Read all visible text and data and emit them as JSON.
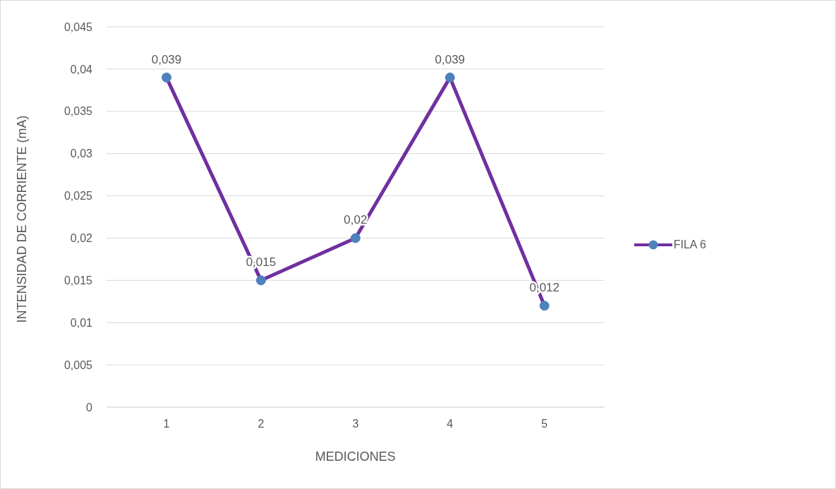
{
  "chart_data": {
    "type": "line",
    "xlabel": "MEDICIONES",
    "ylabel": "INTENSIDAD DE CORRIENTE (mA)",
    "categories": [
      "1",
      "2",
      "3",
      "4",
      "5"
    ],
    "series": [
      {
        "name": "FILA 6",
        "color": "#7030a0",
        "colors": [
          "#4f81bd",
          "#4f81bd",
          "#4f81bd",
          "#4f81bd",
          "#4f81bd"
        ],
        "values": [
          0.039,
          0.015,
          0.02,
          0.039,
          0.012
        ],
        "value_labels": [
          "0,039",
          "0,015",
          "0,02",
          "0,039",
          "0,012"
        ]
      }
    ],
    "ylim": [
      0,
      0.045
    ],
    "yticks": [
      {
        "value": 0,
        "label": "0"
      },
      {
        "value": 0.005,
        "label": "0,005"
      },
      {
        "value": 0.01,
        "label": "0,01"
      },
      {
        "value": 0.015,
        "label": "0,015"
      },
      {
        "value": 0.02,
        "label": "0,02"
      },
      {
        "value": 0.025,
        "label": "0,025"
      },
      {
        "value": 0.03,
        "label": "0,03"
      },
      {
        "value": 0.035,
        "label": "0,035"
      },
      {
        "value": 0.04,
        "label": "0,04"
      },
      {
        "value": 0.045,
        "label": "0,045"
      }
    ],
    "grid": "y",
    "legend": "right",
    "marker": "circle",
    "line_style": "solid"
  }
}
